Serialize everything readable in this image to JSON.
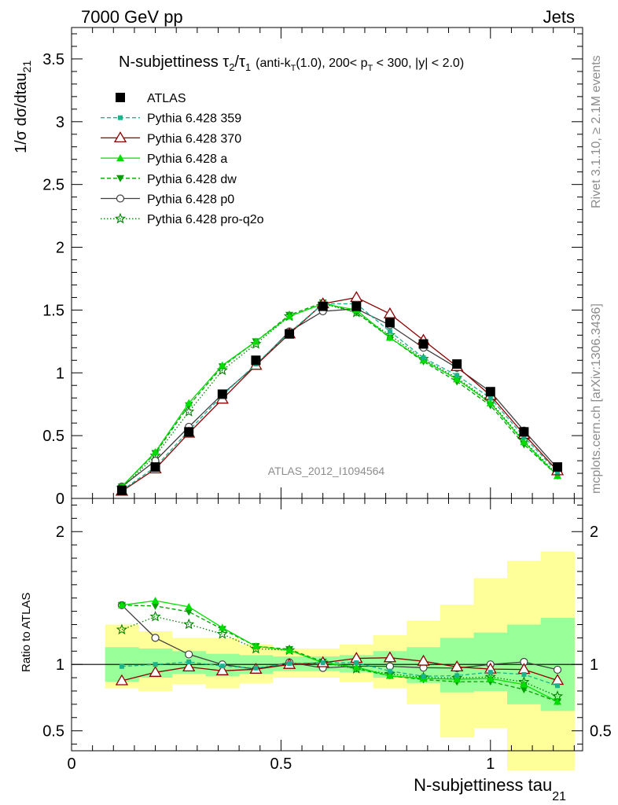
{
  "header": {
    "left": "7000 GeV pp",
    "right": "Jets"
  },
  "side_labels": {
    "rivet": "Rivet 3.1.10, ≥ 2.1M events",
    "mcplots": "mcplots.cern.ch [arXiv:1306.3436]"
  },
  "watermark": "ATLAS_2012_I1094564",
  "title": {
    "main": "N-subjettiness τ",
    "sub2": "2",
    "slash": "/τ",
    "sub1": "1",
    "paren_a": "(anti-k",
    "paren_t": "T",
    "paren_b": "(1.0), 200< p",
    "paren_t2": "T",
    "paren_c": " < 300, |y| < 2.0)"
  },
  "legend": [
    {
      "key": "atlas",
      "label": "ATLAS"
    },
    {
      "key": "p359",
      "label": "Pythia 6.428 359"
    },
    {
      "key": "p370",
      "label": "Pythia 6.428 370"
    },
    {
      "key": "pa",
      "label": "Pythia 6.428 a"
    },
    {
      "key": "pdw",
      "label": "Pythia 6.428 dw"
    },
    {
      "key": "pp0",
      "label": "Pythia 6.428 p0"
    },
    {
      "key": "pq2o",
      "label": "Pythia 6.428 pro-q2o"
    }
  ],
  "chart_data": {
    "type": "line",
    "ylabel_main_a": "1/σ dσ/dtau",
    "ylabel_main_sub": "21",
    "ylabel_ratio": "Ratio to ATLAS",
    "xlabel_a": "N-subjettiness tau",
    "xlabel_sub": "21",
    "xlim": [
      0,
      1.22
    ],
    "ylim_main": [
      0,
      3.75
    ],
    "ylim_ratio": [
      0.35,
      2.25
    ],
    "x_ticks": [
      0,
      0.5,
      1
    ],
    "x_tick_labels": [
      "0",
      "0.5",
      "1"
    ],
    "y_ticks_main": [
      0,
      0.5,
      1,
      1.5,
      2,
      2.5,
      3,
      3.5
    ],
    "y_tick_labels_main": [
      "0",
      "0.5",
      "1",
      "1.5",
      "2",
      "2.5",
      "3",
      "3.5"
    ],
    "y_ticks_ratio": [
      0.5,
      1,
      2
    ],
    "y_tick_labels_ratio": [
      "0.5",
      "1",
      "2"
    ],
    "x": [
      0.12,
      0.2,
      0.28,
      0.36,
      0.44,
      0.52,
      0.6,
      0.68,
      0.76,
      0.84,
      0.92,
      1.0,
      1.08,
      1.16
    ],
    "bin_edges": [
      0.08,
      0.16,
      0.24,
      0.32,
      0.4,
      0.48,
      0.56,
      0.64,
      0.72,
      0.8,
      0.88,
      0.96,
      1.04,
      1.12,
      1.2
    ],
    "band_inner": [
      [
        0.87,
        1.13
      ],
      [
        0.9,
        1.12
      ],
      [
        0.93,
        1.1
      ],
      [
        0.91,
        1.08
      ],
      [
        0.93,
        1.07
      ],
      [
        0.95,
        1.06
      ],
      [
        0.95,
        1.06
      ],
      [
        0.94,
        1.07
      ],
      [
        0.9,
        1.1
      ],
      [
        0.86,
        1.13
      ],
      [
        0.79,
        1.2
      ],
      [
        0.8,
        1.24
      ],
      [
        0.7,
        1.3
      ],
      [
        0.65,
        1.35
      ]
    ],
    "band_outer": [
      [
        0.82,
        1.3
      ],
      [
        0.8,
        1.25
      ],
      [
        0.85,
        1.2
      ],
      [
        0.82,
        1.2
      ],
      [
        0.86,
        1.15
      ],
      [
        0.9,
        1.12
      ],
      [
        0.9,
        1.12
      ],
      [
        0.87,
        1.15
      ],
      [
        0.82,
        1.22
      ],
      [
        0.7,
        1.33
      ],
      [
        0.45,
        1.45
      ],
      [
        0.52,
        1.65
      ],
      [
        0.2,
        1.78
      ],
      [
        0.2,
        1.85
      ]
    ],
    "series": [
      {
        "key": "atlas",
        "name": "ATLAS",
        "color": "#000000",
        "dash": "",
        "marker": "square",
        "values": [
          0.065,
          0.25,
          0.53,
          0.83,
          1.1,
          1.31,
          1.53,
          1.53,
          1.4,
          1.23,
          1.07,
          0.85,
          0.53,
          0.25
        ]
      },
      {
        "key": "p359",
        "name": "Pythia 6.428 359",
        "color": "#1ab38c",
        "dash": "5,3",
        "marker": "smallsquare",
        "values": [
          0.064,
          0.25,
          0.54,
          0.82,
          1.07,
          1.32,
          1.55,
          1.55,
          1.33,
          1.12,
          0.98,
          0.8,
          0.49,
          0.21
        ]
      },
      {
        "key": "p370",
        "name": "Pythia 6.428 370",
        "color": "#8b0000",
        "dash": "",
        "marker": "triangle-open",
        "values": [
          0.057,
          0.235,
          0.52,
          0.79,
          1.06,
          1.31,
          1.55,
          1.6,
          1.47,
          1.26,
          1.05,
          0.82,
          0.51,
          0.22
        ]
      },
      {
        "key": "pa",
        "name": "Pythia 6.428 a",
        "color": "#00dd00",
        "dash": "",
        "marker": "triangle",
        "values": [
          0.094,
          0.37,
          0.76,
          1.06,
          1.25,
          1.45,
          1.55,
          1.5,
          1.28,
          1.1,
          0.95,
          0.76,
          0.45,
          0.18
        ]
      },
      {
        "key": "pdw",
        "name": "Pythia 6.428 dw",
        "color": "#00a000",
        "dash": "5,3",
        "marker": "triangle-down",
        "values": [
          0.094,
          0.36,
          0.74,
          1.05,
          1.25,
          1.46,
          1.56,
          1.48,
          1.28,
          1.09,
          0.93,
          0.74,
          0.43,
          0.18
        ]
      },
      {
        "key": "pp0",
        "name": "Pythia 6.428 p0",
        "color": "#404040",
        "dash": "",
        "marker": "circle-open",
        "values": [
          0.094,
          0.3,
          0.57,
          0.83,
          1.06,
          1.33,
          1.49,
          1.51,
          1.38,
          1.2,
          1.04,
          0.85,
          0.54,
          0.24
        ]
      },
      {
        "key": "pq2o",
        "name": "Pythia 6.428 pro-q2o",
        "color": "#008000",
        "dash": "1.5,2.5",
        "marker": "star-open",
        "values": [
          0.082,
          0.34,
          0.69,
          1.02,
          1.23,
          1.45,
          1.55,
          1.48,
          1.3,
          1.11,
          0.96,
          0.77,
          0.46,
          0.19
        ]
      }
    ]
  }
}
